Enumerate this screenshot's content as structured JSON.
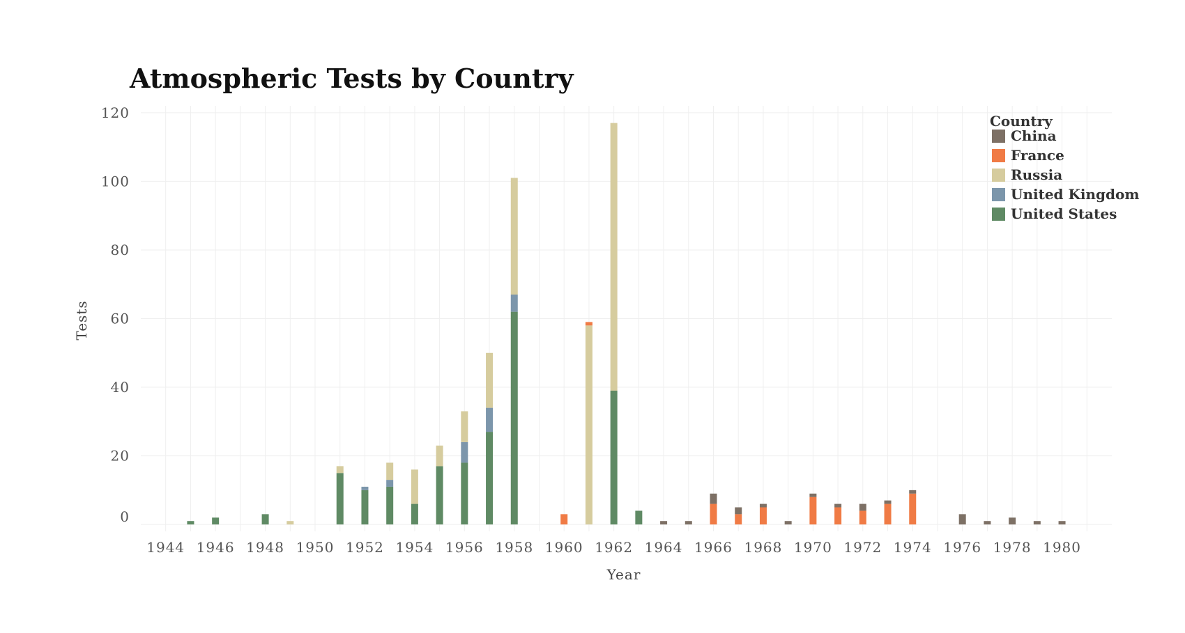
{
  "chart_data": {
    "type": "bar",
    "stacked": true,
    "title": "Atmospheric Tests by Country",
    "xlabel": "Year",
    "ylabel": "Tests",
    "xlim": [
      1943,
      1982
    ],
    "ylim": [
      -2,
      122
    ],
    "x_ticks": [
      1944,
      1946,
      1948,
      1950,
      1952,
      1954,
      1956,
      1958,
      1960,
      1962,
      1964,
      1966,
      1968,
      1970,
      1972,
      1974,
      1976,
      1978,
      1980
    ],
    "y_ticks": [
      0,
      20,
      40,
      60,
      80,
      100,
      120
    ],
    "grid": true,
    "legend": {
      "title": "Country",
      "placement": "top-right",
      "entries": [
        "China",
        "France",
        "Russia",
        "United Kingdom",
        "United States"
      ]
    },
    "colors": {
      "China": "#7d7065",
      "France": "#f07b45",
      "Russia": "#d6cc9e",
      "United Kingdom": "#7c96ab",
      "United States": "#5f8a64"
    },
    "stack_order": [
      "United States",
      "United Kingdom",
      "Russia",
      "France",
      "China"
    ],
    "x": [
      1945,
      1946,
      1948,
      1949,
      1951,
      1952,
      1953,
      1954,
      1955,
      1956,
      1957,
      1958,
      1960,
      1961,
      1962,
      1963,
      1964,
      1965,
      1966,
      1967,
      1968,
      1969,
      1970,
      1971,
      1972,
      1973,
      1974,
      1976,
      1977,
      1978,
      1979,
      1980
    ],
    "series": [
      {
        "name": "United States",
        "values": [
          1,
          2,
          3,
          0,
          15,
          10,
          11,
          6,
          17,
          18,
          27,
          62,
          0,
          0,
          39,
          4,
          0,
          0,
          0,
          0,
          0,
          0,
          0,
          0,
          0,
          0,
          0,
          0,
          0,
          0,
          0,
          0
        ]
      },
      {
        "name": "United Kingdom",
        "values": [
          0,
          0,
          0,
          0,
          0,
          1,
          2,
          0,
          0,
          6,
          7,
          5,
          0,
          0,
          0,
          0,
          0,
          0,
          0,
          0,
          0,
          0,
          0,
          0,
          0,
          0,
          0,
          0,
          0,
          0,
          0,
          0
        ]
      },
      {
        "name": "Russia",
        "values": [
          0,
          0,
          0,
          1,
          2,
          0,
          5,
          10,
          6,
          9,
          16,
          34,
          0,
          58,
          78,
          0,
          0,
          0,
          0,
          0,
          0,
          0,
          0,
          0,
          0,
          0,
          0,
          0,
          0,
          0,
          0,
          0
        ]
      },
      {
        "name": "France",
        "values": [
          0,
          0,
          0,
          0,
          0,
          0,
          0,
          0,
          0,
          0,
          0,
          0,
          3,
          1,
          0,
          0,
          0,
          0,
          6,
          3,
          5,
          0,
          8,
          5,
          4,
          6,
          9,
          0,
          0,
          0,
          0,
          0
        ]
      },
      {
        "name": "China",
        "values": [
          0,
          0,
          0,
          0,
          0,
          0,
          0,
          0,
          0,
          0,
          0,
          0,
          0,
          0,
          0,
          0,
          1,
          1,
          3,
          2,
          1,
          1,
          1,
          1,
          2,
          1,
          1,
          3,
          1,
          2,
          1,
          1
        ]
      }
    ]
  }
}
